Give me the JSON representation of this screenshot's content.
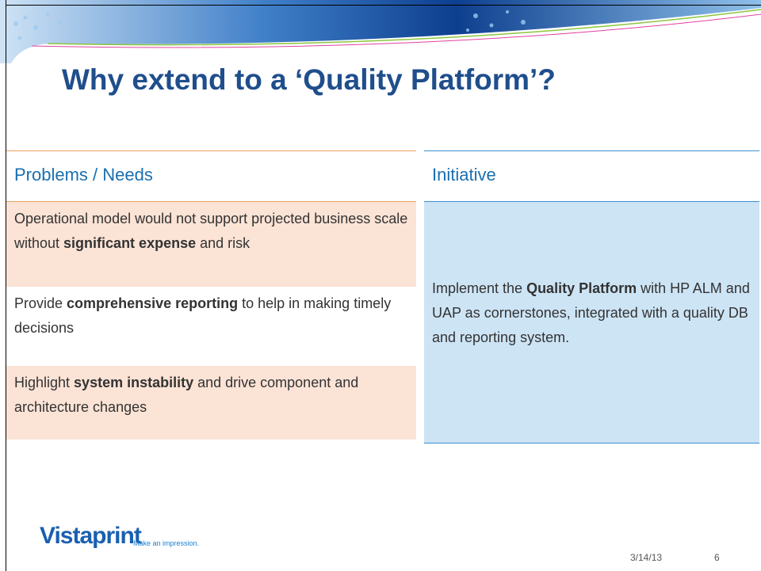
{
  "header": {
    "title": "Why extend to a ‘Quality Platform’?"
  },
  "table": {
    "columns": [
      "Problems / Needs",
      "Initiative"
    ],
    "problems": [
      [
        {
          "text": "Operational model would not support projected business scale without ",
          "bold": false
        },
        {
          "text": "significant expense",
          "bold": true
        },
        {
          "text": " and risk",
          "bold": false
        }
      ],
      [
        {
          "text": "Provide ",
          "bold": false
        },
        {
          "text": "comprehensive reporting",
          "bold": true
        },
        {
          "text": " to help in making timely decisions",
          "bold": false
        }
      ],
      [
        {
          "text": "Highlight ",
          "bold": false
        },
        {
          "text": "system instability",
          "bold": true
        },
        {
          "text": " and drive component and architecture changes",
          "bold": false
        }
      ]
    ],
    "initiative": [
      {
        "text": "Implement the ",
        "bold": false
      },
      {
        "text": "Quality Platform",
        "bold": true
      },
      {
        "text": " with HP ALM and UAP as cornerstones, integrated with a quality DB and reporting system.",
        "bold": false
      }
    ]
  },
  "footer": {
    "logo": "Vistaprint",
    "tagline": "Make an impression.",
    "date": "3/14/13",
    "page": 6
  }
}
